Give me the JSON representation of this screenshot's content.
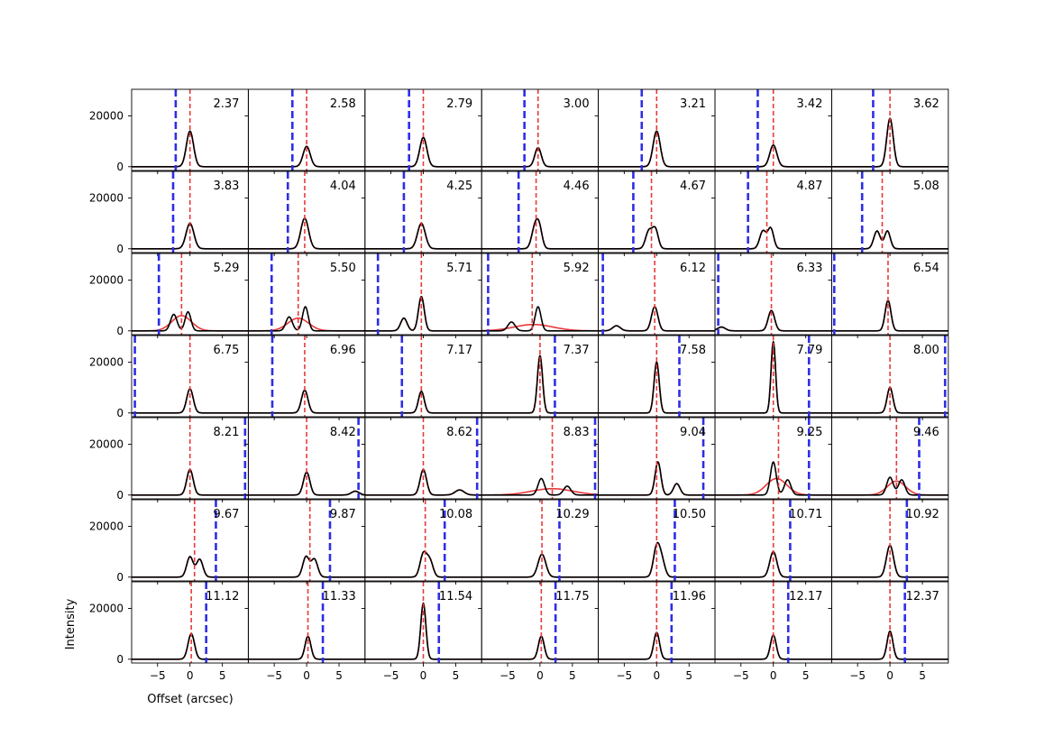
{
  "figure": {
    "xlabel": "Offset (arcsec)",
    "ylabel": "Intensity",
    "colors": {
      "observed": "#000000",
      "model": "#e8393a",
      "red_marker": "#e8393a",
      "blue_marker": "#2e2ee6"
    }
  },
  "chart_data": {
    "type": "line",
    "layout": {
      "rows": 7,
      "cols": 7,
      "shared_axes": true
    },
    "xlim": [
      -9,
      9
    ],
    "ylim": [
      -1500,
      30500
    ],
    "xticks": [
      -5,
      0,
      5
    ],
    "xtick_labels": [
      "−5",
      "0",
      "5"
    ],
    "yticks": [
      0,
      20000
    ],
    "ytick_labels": [
      "0",
      "20000"
    ],
    "grid": false,
    "panels": [
      {
        "label": "2.37",
        "red": 0,
        "blue": -2.2,
        "peaks": [
          [
            0,
            0.55,
            14000
          ]
        ]
      },
      {
        "label": "2.58",
        "red": 0,
        "blue": -2.2,
        "peaks": [
          [
            0,
            0.55,
            8000
          ]
        ]
      },
      {
        "label": "2.79",
        "red": 0,
        "blue": -2.2,
        "peaks": [
          [
            0,
            0.55,
            11500
          ]
        ]
      },
      {
        "label": "3.00",
        "red": -0.3,
        "blue": -2.4,
        "peaks": [
          [
            -0.3,
            0.5,
            7500
          ]
        ]
      },
      {
        "label": "3.21",
        "red": 0,
        "blue": -2.3,
        "peaks": [
          [
            0,
            0.55,
            14000
          ]
        ]
      },
      {
        "label": "3.42",
        "red": 0,
        "blue": -2.4,
        "peaks": [
          [
            0,
            0.55,
            8500
          ]
        ]
      },
      {
        "label": "3.62",
        "red": 0,
        "blue": -2.6,
        "peaks": [
          [
            0,
            0.5,
            19000
          ]
        ]
      },
      {
        "label": "3.83",
        "red": 0,
        "blue": -2.6,
        "peaks": [
          [
            0,
            0.6,
            10000
          ]
        ]
      },
      {
        "label": "4.04",
        "red": -0.3,
        "blue": -2.9,
        "peaks": [
          [
            -0.3,
            0.6,
            12000
          ]
        ]
      },
      {
        "label": "4.25",
        "red": -0.3,
        "blue": -3.0,
        "peaks": [
          [
            -0.3,
            0.6,
            10000
          ]
        ]
      },
      {
        "label": "4.46",
        "red": -0.6,
        "blue": -3.3,
        "peaks": [
          [
            -0.8,
            0.5,
            8000
          ],
          [
            -0.1,
            0.45,
            7500
          ]
        ]
      },
      {
        "label": "4.67",
        "red": -0.8,
        "blue": -3.6,
        "peaks": [
          [
            -1.2,
            0.5,
            7000
          ],
          [
            -0.2,
            0.45,
            7500
          ]
        ]
      },
      {
        "label": "4.87",
        "red": -1.0,
        "blue": -3.9,
        "peaks": [
          [
            -1.6,
            0.5,
            7000
          ],
          [
            -0.4,
            0.45,
            8000
          ]
        ]
      },
      {
        "label": "5.08",
        "red": -1.2,
        "blue": -4.3,
        "peaks": [
          [
            -2.0,
            0.5,
            7000
          ],
          [
            -0.4,
            0.45,
            7000
          ]
        ]
      },
      {
        "label": "5.29",
        "red": -1.3,
        "blue": -4.8,
        "peaks": [
          [
            -2.5,
            0.5,
            6500
          ],
          [
            -0.3,
            0.45,
            7500
          ]
        ],
        "model": [
          -1.3,
          1.5,
          6000
        ]
      },
      {
        "label": "5.50",
        "red": -1.3,
        "blue": -5.4,
        "peaks": [
          [
            -2.7,
            0.5,
            5500
          ],
          [
            -0.2,
            0.45,
            9500
          ]
        ],
        "model": [
          -1.3,
          1.6,
          5000
        ]
      },
      {
        "label": "5.71",
        "red": -0.3,
        "blue": -7.0,
        "peaks": [
          [
            -3.0,
            0.5,
            5000
          ],
          [
            -0.3,
            0.45,
            13500
          ]
        ]
      },
      {
        "label": "5.92",
        "red": -1.2,
        "blue": -8.0,
        "peaks": [
          [
            -4.4,
            0.55,
            3500
          ],
          [
            -0.3,
            0.45,
            9500
          ]
        ],
        "model": [
          -1.0,
          3.0,
          2500
        ]
      },
      {
        "label": "6.12",
        "red": -0.3,
        "blue": -8.3,
        "peaks": [
          [
            -6.2,
            0.6,
            2000
          ],
          [
            -0.3,
            0.5,
            9500
          ]
        ]
      },
      {
        "label": "6.33",
        "red": -0.3,
        "blue": -8.5,
        "peaks": [
          [
            -8.0,
            0.6,
            1500
          ],
          [
            -0.3,
            0.5,
            8000
          ]
        ]
      },
      {
        "label": "6.54",
        "red": -0.3,
        "blue": -8.6,
        "peaks": [
          [
            -0.3,
            0.45,
            12000
          ]
        ]
      },
      {
        "label": "6.75",
        "red": 0,
        "blue": -8.5,
        "peaks": [
          [
            0,
            0.5,
            9500
          ]
        ]
      },
      {
        "label": "6.96",
        "red": -0.3,
        "blue": -5.3,
        "peaks": [
          [
            -0.3,
            0.5,
            9000
          ]
        ]
      },
      {
        "label": "7.17",
        "red": -0.3,
        "blue": -3.3,
        "peaks": [
          [
            -0.3,
            0.45,
            8500
          ]
        ]
      },
      {
        "label": "7.37",
        "red": 0,
        "blue": 2.3,
        "peaks": [
          [
            0,
            0.4,
            22500
          ]
        ]
      },
      {
        "label": "7.58",
        "red": 0,
        "blue": 3.5,
        "peaks": [
          [
            0,
            0.4,
            20000
          ]
        ]
      },
      {
        "label": "7.79",
        "red": 0,
        "blue": 5.5,
        "peaks": [
          [
            0,
            0.35,
            28000
          ]
        ]
      },
      {
        "label": "8.00",
        "red": 0,
        "blue": 8.5,
        "peaks": [
          [
            0,
            0.45,
            10000
          ]
        ]
      },
      {
        "label": "8.21",
        "red": 0,
        "blue": 8.5,
        "peaks": [
          [
            0,
            0.5,
            10000
          ]
        ]
      },
      {
        "label": "8.42",
        "red": 0,
        "blue": 8.0,
        "peaks": [
          [
            0,
            0.5,
            9000
          ],
          [
            7.5,
            0.6,
            1500
          ]
        ]
      },
      {
        "label": "8.62",
        "red": 0,
        "blue": 8.3,
        "peaks": [
          [
            0,
            0.5,
            10000
          ],
          [
            5.6,
            0.7,
            2000
          ]
        ]
      },
      {
        "label": "8.83",
        "red": 1.9,
        "blue": 8.5,
        "peaks": [
          [
            0.2,
            0.5,
            6500
          ],
          [
            4.2,
            0.55,
            3500
          ]
        ],
        "model": [
          1.9,
          3.2,
          2500
        ]
      },
      {
        "label": "9.04",
        "red": 0,
        "blue": 7.2,
        "peaks": [
          [
            0.2,
            0.45,
            13000
          ],
          [
            3.1,
            0.5,
            4500
          ]
        ]
      },
      {
        "label": "9.25",
        "red": 0.8,
        "blue": 5.5,
        "peaks": [
          [
            0,
            0.45,
            13000
          ],
          [
            2.2,
            0.5,
            6000
          ]
        ],
        "model": [
          0.5,
          1.6,
          6500
        ]
      },
      {
        "label": "9.46",
        "red": 1.0,
        "blue": 4.5,
        "peaks": [
          [
            0,
            0.5,
            7000
          ],
          [
            1.8,
            0.5,
            6000
          ]
        ],
        "model": [
          1.0,
          1.4,
          5500
        ]
      },
      {
        "label": "9.67",
        "red": 0.7,
        "blue": 4.0,
        "peaks": [
          [
            0,
            0.5,
            8000
          ],
          [
            1.5,
            0.5,
            7000
          ]
        ]
      },
      {
        "label": "9.87",
        "red": 0.5,
        "blue": 3.6,
        "peaks": [
          [
            -0.1,
            0.5,
            8000
          ],
          [
            1.2,
            0.5,
            7000
          ]
        ]
      },
      {
        "label": "10.08",
        "red": 0.3,
        "blue": 3.3,
        "peaks": [
          [
            0,
            0.5,
            9000
          ],
          [
            1.0,
            0.5,
            6500
          ]
        ]
      },
      {
        "label": "10.29",
        "red": 0.3,
        "blue": 3.0,
        "peaks": [
          [
            0.3,
            0.6,
            9000
          ]
        ]
      },
      {
        "label": "10.50",
        "red": 0,
        "blue": 2.8,
        "peaks": [
          [
            0,
            0.5,
            11500
          ],
          [
            0.8,
            0.5,
            6000
          ]
        ]
      },
      {
        "label": "10.71",
        "red": 0,
        "blue": 2.6,
        "peaks": [
          [
            0,
            0.55,
            10000
          ]
        ]
      },
      {
        "label": "10.92",
        "red": 0,
        "blue": 2.6,
        "peaks": [
          [
            0,
            0.55,
            12500
          ]
        ]
      },
      {
        "label": "11.12",
        "red": 0.2,
        "blue": 2.5,
        "peaks": [
          [
            0.2,
            0.5,
            10000
          ]
        ]
      },
      {
        "label": "11.33",
        "red": 0.2,
        "blue": 2.5,
        "peaks": [
          [
            0.2,
            0.45,
            9000
          ]
        ]
      },
      {
        "label": "11.54",
        "red": 0,
        "blue": 2.4,
        "peaks": [
          [
            0,
            0.4,
            22000
          ]
        ]
      },
      {
        "label": "11.75",
        "red": 0.2,
        "blue": 2.4,
        "peaks": [
          [
            0.2,
            0.45,
            9000
          ]
        ]
      },
      {
        "label": "11.96",
        "red": 0,
        "blue": 2.3,
        "peaks": [
          [
            0,
            0.45,
            10500
          ]
        ]
      },
      {
        "label": "12.17",
        "red": 0,
        "blue": 2.3,
        "peaks": [
          [
            0,
            0.45,
            9500
          ]
        ]
      },
      {
        "label": "12.37",
        "red": 0,
        "blue": 2.3,
        "peaks": [
          [
            0,
            0.45,
            11000
          ]
        ]
      }
    ]
  }
}
